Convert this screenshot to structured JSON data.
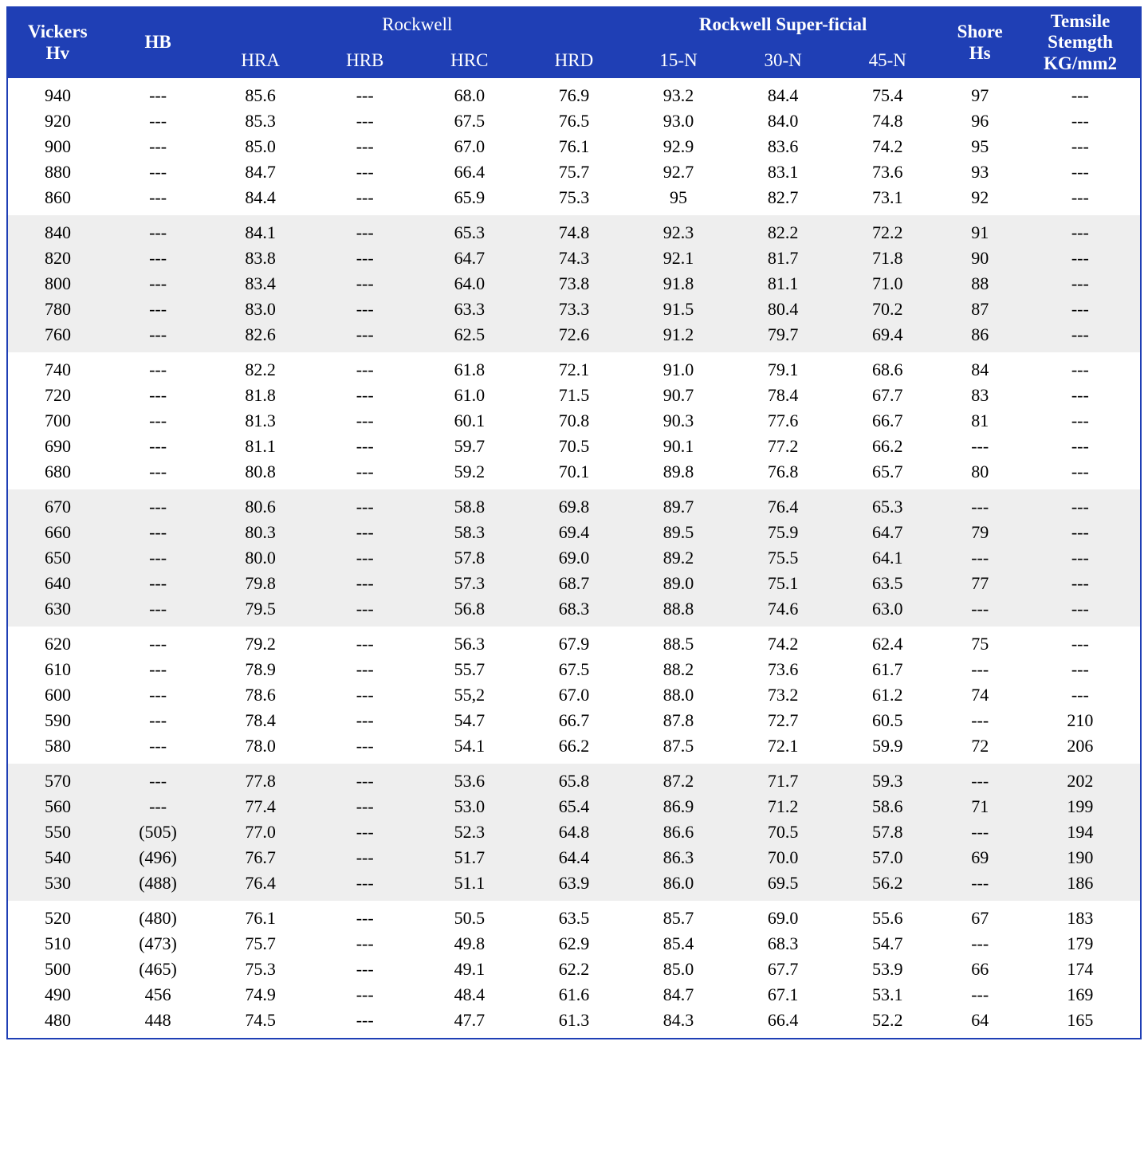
{
  "colors": {
    "header_bg": "#1f3fb5",
    "header_text": "#ffffff",
    "stripe_a": "#ffffff",
    "stripe_b": "#eeeeee",
    "border": "#1f3fb5",
    "text": "#000000"
  },
  "fonts": {
    "family": "Times New Roman",
    "header_size_pt": 17,
    "cell_size_pt": 16
  },
  "header": {
    "vickers_line1": "Vickers",
    "vickers_line2": "Hv",
    "hb": "HB",
    "rockwell_group": "Rockwell",
    "rockwell_superficial_group": "Rockwell Super-ficial",
    "shore_line1": "Shore",
    "shore_line2": "Hs",
    "tensile_line1": "Temsile",
    "tensile_line2": "Stemgth",
    "tensile_line3": "KG/mm2",
    "hra": "HRA",
    "hrb": "HRB",
    "hrc": "HRC",
    "hrd": "HRD",
    "n15": "15-N",
    "n30": "30-N",
    "n45": "45-N"
  },
  "columns": [
    "Vickers Hv",
    "HB",
    "HRA",
    "HRB",
    "HRC",
    "HRD",
    "15-N",
    "30-N",
    "45-N",
    "Shore Hs",
    "Tensile KG/mm2"
  ],
  "placeholder": "---",
  "groups": [
    {
      "stripe": "a",
      "rows": [
        [
          "940",
          "---",
          "85.6",
          "---",
          "68.0",
          "76.9",
          "93.2",
          "84.4",
          "75.4",
          "97",
          "---"
        ],
        [
          "920",
          "---",
          "85.3",
          "---",
          "67.5",
          "76.5",
          "93.0",
          "84.0",
          "74.8",
          "96",
          "---"
        ],
        [
          "900",
          "---",
          "85.0",
          "---",
          "67.0",
          "76.1",
          "92.9",
          "83.6",
          "74.2",
          "95",
          "---"
        ],
        [
          "880",
          "---",
          "84.7",
          "---",
          "66.4",
          "75.7",
          "92.7",
          "83.1",
          "73.6",
          "93",
          "---"
        ],
        [
          "860",
          "---",
          "84.4",
          "---",
          "65.9",
          "75.3",
          "95",
          "82.7",
          "73.1",
          "92",
          "---"
        ]
      ]
    },
    {
      "stripe": "b",
      "rows": [
        [
          "840",
          "---",
          "84.1",
          "---",
          "65.3",
          "74.8",
          "92.3",
          "82.2",
          "72.2",
          "91",
          "---"
        ],
        [
          "820",
          "---",
          "83.8",
          "---",
          "64.7",
          "74.3",
          "92.1",
          "81.7",
          "71.8",
          "90",
          "---"
        ],
        [
          "800",
          "---",
          "83.4",
          "---",
          "64.0",
          "73.8",
          "91.8",
          "81.1",
          "71.0",
          "88",
          "---"
        ],
        [
          "780",
          "---",
          "83.0",
          "---",
          "63.3",
          "73.3",
          "91.5",
          "80.4",
          "70.2",
          "87",
          "---"
        ],
        [
          "760",
          "---",
          "82.6",
          "---",
          "62.5",
          "72.6",
          "91.2",
          "79.7",
          "69.4",
          "86",
          "---"
        ]
      ]
    },
    {
      "stripe": "a",
      "rows": [
        [
          "740",
          "---",
          "82.2",
          "---",
          "61.8",
          "72.1",
          "91.0",
          "79.1",
          "68.6",
          "84",
          "---"
        ],
        [
          "720",
          "---",
          "81.8",
          "---",
          "61.0",
          "71.5",
          "90.7",
          "78.4",
          "67.7",
          "83",
          "---"
        ],
        [
          "700",
          "---",
          "81.3",
          "---",
          "60.1",
          "70.8",
          "90.3",
          "77.6",
          "66.7",
          "81",
          "---"
        ],
        [
          "690",
          "---",
          "81.1",
          "---",
          "59.7",
          "70.5",
          "90.1",
          "77.2",
          "66.2",
          "---",
          "---"
        ],
        [
          "680",
          "---",
          "80.8",
          "---",
          "59.2",
          "70.1",
          "89.8",
          "76.8",
          "65.7",
          "80",
          "---"
        ]
      ]
    },
    {
      "stripe": "b",
      "rows": [
        [
          "670",
          "---",
          "80.6",
          "---",
          "58.8",
          "69.8",
          "89.7",
          "76.4",
          "65.3",
          "---",
          "---"
        ],
        [
          "660",
          "---",
          "80.3",
          "---",
          "58.3",
          "69.4",
          "89.5",
          "75.9",
          "64.7",
          "79",
          "---"
        ],
        [
          "650",
          "---",
          "80.0",
          "---",
          "57.8",
          "69.0",
          "89.2",
          "75.5",
          "64.1",
          "---",
          "---"
        ],
        [
          "640",
          "---",
          "79.8",
          "---",
          "57.3",
          "68.7",
          "89.0",
          "75.1",
          "63.5",
          "77",
          "---"
        ],
        [
          "630",
          "---",
          "79.5",
          "---",
          "56.8",
          "68.3",
          "88.8",
          "74.6",
          "63.0",
          "---",
          "---"
        ]
      ]
    },
    {
      "stripe": "a",
      "rows": [
        [
          "620",
          "---",
          "79.2",
          "---",
          "56.3",
          "67.9",
          "88.5",
          "74.2",
          "62.4",
          "75",
          "---"
        ],
        [
          "610",
          "---",
          "78.9",
          "---",
          "55.7",
          "67.5",
          "88.2",
          "73.6",
          "61.7",
          "---",
          "---"
        ],
        [
          "600",
          "---",
          "78.6",
          "---",
          "55,2",
          "67.0",
          "88.0",
          "73.2",
          "61.2",
          "74",
          "---"
        ],
        [
          "590",
          "---",
          "78.4",
          "---",
          "54.7",
          "66.7",
          "87.8",
          "72.7",
          "60.5",
          "---",
          "210"
        ],
        [
          "580",
          "---",
          "78.0",
          "---",
          "54.1",
          "66.2",
          "87.5",
          "72.1",
          "59.9",
          "72",
          "206"
        ]
      ]
    },
    {
      "stripe": "b",
      "rows": [
        [
          "570",
          "---",
          "77.8",
          "---",
          "53.6",
          "65.8",
          "87.2",
          "71.7",
          "59.3",
          "---",
          "202"
        ],
        [
          "560",
          "---",
          "77.4",
          "---",
          "53.0",
          "65.4",
          "86.9",
          "71.2",
          "58.6",
          "71",
          "199"
        ],
        [
          "550",
          "(505)",
          "77.0",
          "---",
          "52.3",
          "64.8",
          "86.6",
          "70.5",
          "57.8",
          "---",
          "194"
        ],
        [
          "540",
          "(496)",
          "76.7",
          "---",
          "51.7",
          "64.4",
          "86.3",
          "70.0",
          "57.0",
          "69",
          "190"
        ],
        [
          "530",
          "(488)",
          "76.4",
          "---",
          "51.1",
          "63.9",
          "86.0",
          "69.5",
          "56.2",
          "---",
          "186"
        ]
      ]
    },
    {
      "stripe": "a",
      "rows": [
        [
          "520",
          "(480)",
          "76.1",
          "---",
          "50.5",
          "63.5",
          "85.7",
          "69.0",
          "55.6",
          "67",
          "183"
        ],
        [
          "510",
          "(473)",
          "75.7",
          "---",
          "49.8",
          "62.9",
          "85.4",
          "68.3",
          "54.7",
          "---",
          "179"
        ],
        [
          "500",
          "(465)",
          "75.3",
          "---",
          "49.1",
          "62.2",
          "85.0",
          "67.7",
          "53.9",
          "66",
          "174"
        ],
        [
          "490",
          "456",
          "74.9",
          "---",
          "48.4",
          "61.6",
          "84.7",
          "67.1",
          "53.1",
          "---",
          "169"
        ],
        [
          "480",
          "448",
          "74.5",
          "---",
          "47.7",
          "61.3",
          "84.3",
          "66.4",
          "52.2",
          "64",
          "165"
        ]
      ]
    }
  ]
}
